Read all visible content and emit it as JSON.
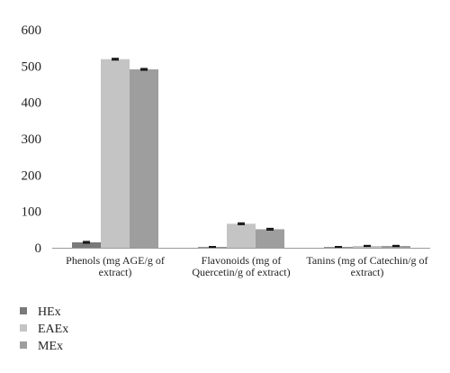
{
  "chart_data": {
    "type": "bar",
    "categories": [
      [
        "Phenols (mg AGE/g of",
        "extract)"
      ],
      [
        "Flavonoids (mg of",
        "Quercetin/g of extract)"
      ],
      [
        "Tanins (mg of Catechin/g of",
        "extract)"
      ]
    ],
    "series": [
      {
        "name": "HEx",
        "values": [
          15,
          2,
          2
        ],
        "errors": [
          2,
          1,
          1
        ]
      },
      {
        "name": "EAEx",
        "values": [
          519,
          66,
          5
        ],
        "errors": [
          2,
          2,
          1
        ]
      },
      {
        "name": "MEx",
        "values": [
          491,
          51,
          5
        ],
        "errors": [
          2,
          2,
          1
        ]
      }
    ],
    "ylim": [
      0,
      600
    ],
    "yticks": [
      0,
      100,
      200,
      300,
      400,
      500,
      600
    ],
    "grid": false,
    "legend": "bottom-left",
    "colors": [
      "#7a7a7a",
      "#c4c4c4",
      "#9e9e9e"
    ]
  }
}
